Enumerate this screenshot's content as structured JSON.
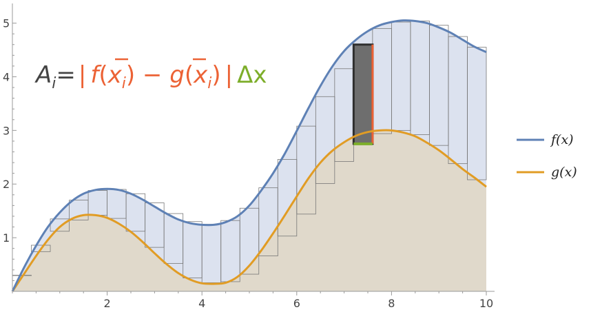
{
  "chart_data": {
    "type": "area",
    "xlim": [
      0,
      10
    ],
    "ylim": [
      0,
      5.2
    ],
    "x_ticks": [
      "2",
      "4",
      "6",
      "8",
      "10"
    ],
    "y_ticks": [
      "1",
      "2",
      "3",
      "4",
      "5"
    ],
    "grid": false,
    "legend_position": "right",
    "series": [
      {
        "name": "f(x)",
        "color": "#5e81b5",
        "x": [
          0,
          0.25,
          0.5,
          0.75,
          1,
          1.25,
          1.5,
          1.75,
          2,
          2.25,
          2.5,
          2.75,
          3,
          3.25,
          3.5,
          3.75,
          4,
          4.25,
          4.5,
          4.75,
          5,
          5.25,
          5.5,
          5.75,
          6,
          6.25,
          6.5,
          6.75,
          7,
          7.25,
          7.5,
          7.75,
          8,
          8.25,
          8.5,
          8.75,
          9,
          9.25,
          9.5,
          9.75,
          10
        ],
        "values": [
          0,
          0.45,
          0.85,
          1.2,
          1.47,
          1.68,
          1.82,
          1.89,
          1.91,
          1.89,
          1.82,
          1.71,
          1.58,
          1.45,
          1.34,
          1.27,
          1.24,
          1.24,
          1.29,
          1.4,
          1.6,
          1.88,
          2.2,
          2.57,
          2.99,
          3.42,
          3.83,
          4.19,
          4.48,
          4.69,
          4.85,
          4.96,
          5.02,
          5.05,
          5.04,
          5.0,
          4.92,
          4.82,
          4.69,
          4.56,
          4.46
        ]
      },
      {
        "name": "g(x)",
        "color": "#e19c24",
        "x": [
          0,
          0.25,
          0.5,
          0.75,
          1,
          1.25,
          1.5,
          1.75,
          2,
          2.25,
          2.5,
          2.75,
          3,
          3.25,
          3.5,
          3.75,
          4,
          4.25,
          4.5,
          4.75,
          5,
          5.25,
          5.5,
          5.75,
          6,
          6.25,
          6.5,
          6.75,
          7,
          7.25,
          7.5,
          7.75,
          8,
          8.25,
          8.5,
          8.75,
          9,
          9.25,
          9.5,
          9.75,
          10
        ],
        "values": [
          0,
          0.33,
          0.66,
          0.96,
          1.2,
          1.35,
          1.42,
          1.42,
          1.37,
          1.26,
          1.11,
          0.92,
          0.71,
          0.51,
          0.34,
          0.22,
          0.15,
          0.14,
          0.16,
          0.27,
          0.48,
          0.76,
          1.08,
          1.42,
          1.77,
          2.11,
          2.4,
          2.62,
          2.78,
          2.9,
          2.97,
          3.0,
          3.0,
          2.96,
          2.89,
          2.77,
          2.63,
          2.46,
          2.28,
          2.12,
          1.95
        ]
      }
    ],
    "rectangles": {
      "x_start": [
        0,
        0.4,
        0.8,
        1.2,
        1.6,
        2.0,
        2.4,
        2.8,
        3.2,
        3.6,
        4.0,
        4.4,
        4.8,
        5.2,
        5.6,
        6.0,
        6.4,
        6.8,
        7.2,
        7.6,
        8.0,
        8.4,
        8.8,
        9.2,
        9.6
      ],
      "width": 0.4,
      "top": [
        0.3,
        0.86,
        1.35,
        1.7,
        1.88,
        1.9,
        1.82,
        1.65,
        1.45,
        1.3,
        1.25,
        1.32,
        1.55,
        1.93,
        2.46,
        3.08,
        3.63,
        4.15,
        4.6,
        4.9,
        5.02,
        5.04,
        4.96,
        4.75,
        4.55
      ],
      "bottom": [
        0.3,
        0.74,
        1.12,
        1.33,
        1.42,
        1.36,
        1.12,
        0.82,
        0.52,
        0.25,
        0.16,
        0.18,
        0.32,
        0.66,
        1.03,
        1.44,
        2.01,
        2.42,
        2.75,
        2.94,
        3.0,
        2.92,
        2.72,
        2.38,
        2.08
      ]
    },
    "highlighted_index": 18,
    "highlight_colors": {
      "fill": "#6e6e6e",
      "border": "#2e2e2e",
      "height": "#ec6235",
      "width": "#7dae2a"
    },
    "fill_colors": {
      "between": "#dce2ef",
      "below": "#e0d9cb"
    },
    "annotation": {
      "A": "A",
      "i": "i",
      "eq": "=",
      "bar1": "|",
      "f": "f",
      "open1": "(",
      "xbar1": "x",
      "i1": "i",
      "close1": ")",
      "minus": " − ",
      "g": "g",
      "open2": "(",
      "xbar2": "x",
      "i2": "i",
      "close2": ")",
      "bar2": "|",
      "dx": "Δx"
    },
    "legend": {
      "f_label": "f(x)",
      "g_label": "g(x)"
    }
  }
}
